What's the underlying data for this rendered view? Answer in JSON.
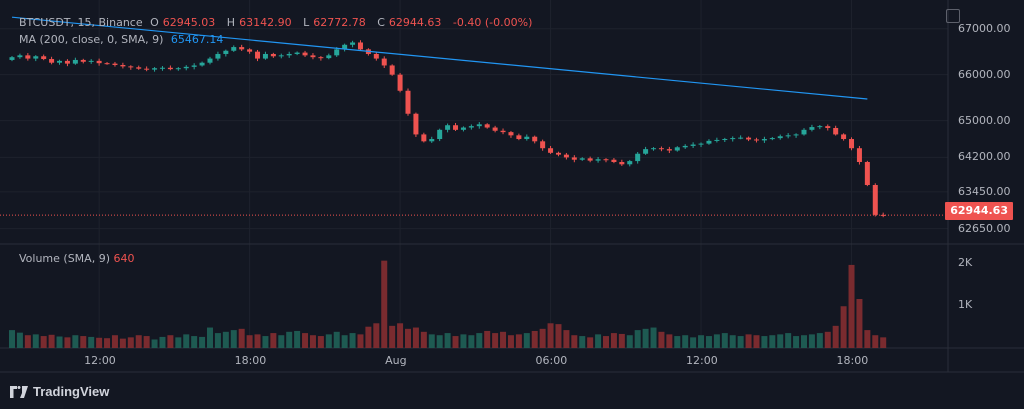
{
  "legend": {
    "symbol": "BTCUSDT, 15, Binance",
    "open_label": "O",
    "open": "62945.03",
    "high_label": "H",
    "high": "63142.90",
    "low_label": "L",
    "low": "62772.78",
    "close_label": "C",
    "close": "62944.63",
    "change": "-0.40 (-0.00%)"
  },
  "ma_legend": {
    "label": "MA (200, close, 0, SMA, 9)",
    "value": "65467.14"
  },
  "volume_legend": {
    "label": "Volume (SMA, 9)",
    "value": "640"
  },
  "last_price_tag": "62944.63",
  "brand": "TradingView",
  "colors": {
    "background": "#131722",
    "up": "#26a69a",
    "down": "#ef5350",
    "ma": "#2196f3",
    "vol_up": "#1e5a52",
    "vol_down": "#7a2b2f"
  },
  "chart_data": {
    "type": "candlestick",
    "title": "BTCUSDT, 15, Binance",
    "price_axis": {
      "ticks": [
        67000,
        66000,
        65000,
        64200,
        63450,
        62650
      ],
      "tick_labels": [
        "67000.00",
        "66000.00",
        "65000.00",
        "64200.00",
        "63450.00",
        "62650.00"
      ],
      "ylim": [
        62360,
        67450
      ]
    },
    "volume_axis": {
      "ticks": [
        2000,
        1000
      ],
      "tick_labels": [
        "2K",
        "1K"
      ],
      "ylim": [
        0,
        2300
      ]
    },
    "time_axis": {
      "tick_labels": [
        "12:00",
        "18:00",
        "Aug",
        "06:00",
        "12:00",
        "18:00"
      ],
      "tick_bar_index": [
        11,
        30,
        49,
        68,
        87,
        106
      ]
    },
    "ma_line": {
      "name": "MA (200, close, 0, SMA, 9)",
      "start": [
        0,
        67250
      ],
      "end": [
        108,
        65470
      ]
    },
    "last_price": 62944.63,
    "grid": true,
    "close": [
      66380,
      66420,
      66350,
      66400,
      66340,
      66260,
      66300,
      66240,
      66320,
      66280,
      66300,
      66250,
      66240,
      66210,
      66180,
      66160,
      66130,
      66110,
      66140,
      66150,
      66120,
      66140,
      66170,
      66200,
      66260,
      66350,
      66450,
      66520,
      66600,
      66550,
      66500,
      66350,
      66450,
      66400,
      66420,
      66450,
      66480,
      66420,
      66380,
      66360,
      66420,
      66550,
      66650,
      66700,
      66550,
      66450,
      66350,
      66200,
      66000,
      65650,
      65150,
      64700,
      64550,
      64600,
      64800,
      64900,
      64800,
      64850,
      64880,
      64920,
      64850,
      64780,
      64750,
      64680,
      64600,
      64650,
      64550,
      64400,
      64300,
      64260,
      64200,
      64150,
      64180,
      64130,
      64160,
      64150,
      64100,
      64050,
      64120,
      64280,
      64380,
      64400,
      64380,
      64350,
      64420,
      64450,
      64480,
      64500,
      64560,
      64580,
      64600,
      64620,
      64630,
      64590,
      64570,
      64600,
      64620,
      64660,
      64680,
      64700,
      64800,
      64860,
      64880,
      64840,
      64700,
      64600,
      64400,
      64100,
      63600,
      62950,
      62945
    ],
    "volume": [
      420,
      360,
      300,
      320,
      280,
      310,
      270,
      250,
      300,
      280,
      260,
      240,
      230,
      300,
      220,
      250,
      300,
      280,
      200,
      260,
      300,
      250,
      320,
      280,
      260,
      480,
      350,
      380,
      420,
      450,
      300,
      320,
      280,
      350,
      300,
      380,
      400,
      350,
      300,
      280,
      320,
      380,
      300,
      350,
      320,
      500,
      580,
      2050,
      520,
      580,
      450,
      480,
      380,
      320,
      300,
      350,
      280,
      320,
      300,
      350,
      400,
      350,
      380,
      300,
      320,
      350,
      400,
      450,
      580,
      560,
      420,
      300,
      280,
      250,
      320,
      280,
      350,
      330,
      300,
      420,
      450,
      480,
      380,
      320,
      280,
      300,
      250,
      300,
      280,
      320,
      350,
      300,
      280,
      320,
      300,
      280,
      300,
      320,
      350,
      280,
      300,
      320,
      350,
      380,
      520,
      980,
      1950,
      1150,
      420,
      300,
      250
    ]
  }
}
